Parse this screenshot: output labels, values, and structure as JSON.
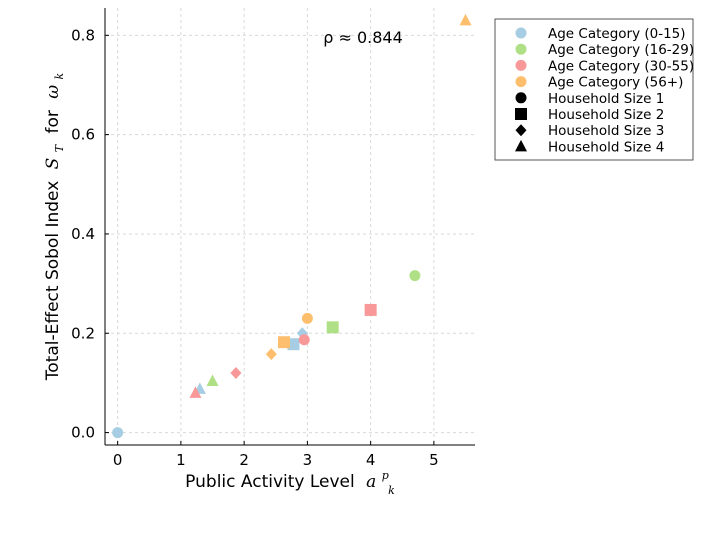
{
  "chart_data": {
    "type": "scatter",
    "xlabel": "Public Activity Level",
    "xlabel_math": "a",
    "xlabel_sup": "p",
    "xlabel_sub": "k",
    "ylabel": "Total-Effect Sobol Index",
    "ylabel_math": "S",
    "ylabel_sub": "T",
    "ylabel_mid": "for",
    "ylabel_math2": "ω",
    "ylabel_math2_sub": "k",
    "xlim": [
      -0.2,
      5.65
    ],
    "ylim": [
      -0.025,
      0.855
    ],
    "xticks": [
      0,
      1,
      2,
      3,
      4,
      5
    ],
    "yticks": [
      0.0,
      0.2,
      0.4,
      0.6,
      0.8
    ],
    "xtick_labels": [
      "0",
      "1",
      "2",
      "3",
      "4",
      "5"
    ],
    "ytick_labels": [
      "0.0",
      "0.2",
      "0.4",
      "0.6",
      "0.8"
    ],
    "grid": true,
    "annotation": {
      "text": "ρ ≈ 0.844",
      "x": 3.25,
      "y": 0.785
    },
    "age_categories": [
      {
        "name": "Age Category (0-15)",
        "color": "#a6cde3"
      },
      {
        "name": "Age Category (16-29)",
        "color": "#b0e086"
      },
      {
        "name": "Age Category (30-55)",
        "color": "#f89898"
      },
      {
        "name": "Age Category (56+)",
        "color": "#fdbf6e"
      }
    ],
    "household_sizes": [
      {
        "name": "Household Size 1",
        "marker": "circle"
      },
      {
        "name": "Household Size 2",
        "marker": "square"
      },
      {
        "name": "Household Size 3",
        "marker": "diamond"
      },
      {
        "name": "Household Size 4",
        "marker": "triangle"
      }
    ],
    "points": [
      {
        "x": 0.0,
        "y": 0.0,
        "age": 0,
        "size": 1
      },
      {
        "x": 2.78,
        "y": 0.178,
        "age": 0,
        "size": 2
      },
      {
        "x": 2.92,
        "y": 0.2,
        "age": 0,
        "size": 3
      },
      {
        "x": 1.3,
        "y": 0.088,
        "age": 0,
        "size": 4
      },
      {
        "x": 4.7,
        "y": 0.316,
        "age": 1,
        "size": 1
      },
      {
        "x": 3.4,
        "y": 0.212,
        "age": 1,
        "size": 2
      },
      {
        "x": 1.5,
        "y": 0.104,
        "age": 1,
        "size": 4
      },
      {
        "x": 2.95,
        "y": 0.187,
        "age": 2,
        "size": 1
      },
      {
        "x": 4.0,
        "y": 0.247,
        "age": 2,
        "size": 2
      },
      {
        "x": 1.87,
        "y": 0.12,
        "age": 2,
        "size": 3
      },
      {
        "x": 1.23,
        "y": 0.08,
        "age": 2,
        "size": 4
      },
      {
        "x": 3.0,
        "y": 0.23,
        "age": 3,
        "size": 1
      },
      {
        "x": 2.63,
        "y": 0.182,
        "age": 3,
        "size": 2
      },
      {
        "x": 2.43,
        "y": 0.158,
        "age": 3,
        "size": 3
      },
      {
        "x": 5.5,
        "y": 0.83,
        "age": 3,
        "size": 4
      }
    ]
  }
}
